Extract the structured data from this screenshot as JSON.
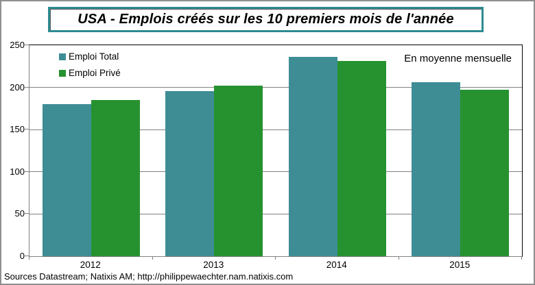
{
  "title": "USA - Emplois créés sur les 10 premiers mois de l'année",
  "annotation": "En moyenne mensuelle",
  "footer": "Sources Datastream; Natixis AM; http://philippewaechter.nam.natixis.com",
  "colors": {
    "emploi_total": "#3E8D95",
    "emploi_prive": "#26922F",
    "title_border": "#2E8B91",
    "grid": "#808080",
    "plot_border": "#000000",
    "outer_frame": "#8F8F8F"
  },
  "chart_data": {
    "type": "bar",
    "title": "USA - Emplois créés sur les 10 premiers mois de l'année",
    "categories": [
      "2012",
      "2013",
      "2014",
      "2015"
    ],
    "series": [
      {
        "name": "Emploi Total",
        "color": "#3E8D95",
        "values": [
          180,
          196,
          236,
          206
        ]
      },
      {
        "name": "Emploi Privé",
        "color": "#26922F",
        "values": [
          185,
          202,
          231,
          197
        ]
      }
    ],
    "xlabel": "",
    "ylabel": "",
    "ylim": [
      0,
      250
    ],
    "yticks": [
      0,
      50,
      100,
      150,
      200,
      250
    ],
    "grid": true,
    "legend_position": "top-left-inside",
    "annotation": "En moyenne mensuelle"
  }
}
